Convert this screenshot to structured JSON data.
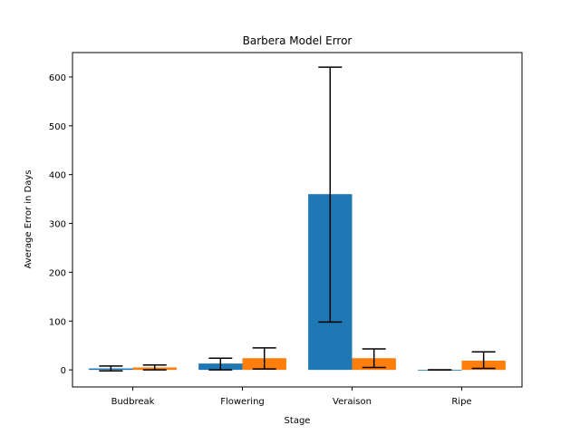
{
  "chart_data": {
    "type": "bar",
    "title": "Barbera Model Error",
    "xlabel": "Stage",
    "ylabel": "Average Error in Days",
    "categories": [
      "Budbreak",
      "Flowering",
      "Veraison",
      "Ripe"
    ],
    "ylim": [
      -35,
      650
    ],
    "yticks": [
      0,
      100,
      200,
      300,
      400,
      500,
      600
    ],
    "grid": false,
    "legend": "none",
    "series": [
      {
        "color": "#1f77b4",
        "values": [
          3,
          13,
          360,
          0
        ],
        "err_low": [
          -2,
          0,
          98,
          0
        ],
        "err_high": [
          8,
          24,
          620,
          0
        ]
      },
      {
        "color": "#ff7f0e",
        "values": [
          5,
          24,
          24,
          19
        ],
        "err_low": [
          0,
          2,
          5,
          3
        ],
        "err_high": [
          10,
          45,
          43,
          37
        ]
      }
    ]
  }
}
